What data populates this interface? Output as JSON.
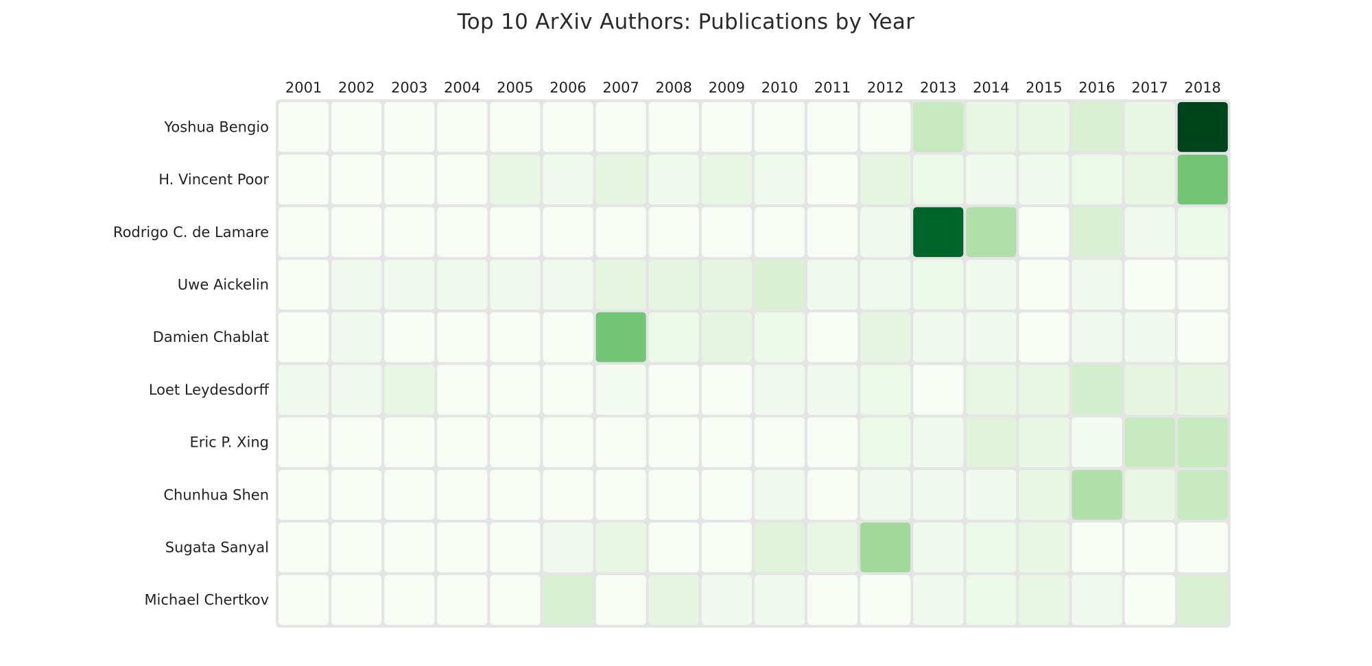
{
  "chart_data": {
    "type": "heatmap",
    "title": "Top 10 ArXiv Authors: Publications by Year",
    "x": [
      "2001",
      "2002",
      "2003",
      "2004",
      "2005",
      "2006",
      "2007",
      "2008",
      "2009",
      "2010",
      "2011",
      "2012",
      "2013",
      "2014",
      "2015",
      "2016",
      "2017",
      "2018"
    ],
    "y": [
      "Yoshua Bengio",
      "H. Vincent Poor",
      "Rodrigo C. de Lamare",
      "Uwe Aickelin",
      "Damien Chablat",
      "Loet Leydesdorff",
      "Eric P. Xing",
      "Chunhua Shen",
      "Sugata Sanyal",
      "Michael Chertkov"
    ],
    "z": [
      [
        0,
        0,
        0,
        0,
        0,
        0,
        0,
        0,
        0,
        0,
        0,
        0,
        10,
        4,
        4,
        7,
        4,
        40
      ],
      [
        0,
        0,
        0,
        0,
        4,
        2,
        5,
        2,
        4,
        2,
        0,
        5,
        3,
        2,
        2,
        3,
        4,
        20
      ],
      [
        0,
        0,
        0,
        0,
        0,
        0,
        0,
        0,
        0,
        0,
        0,
        2,
        36,
        13,
        0,
        7,
        2,
        3
      ],
      [
        0,
        2,
        2,
        2,
        2,
        2,
        5,
        5,
        5,
        7,
        2,
        2,
        3,
        2,
        0,
        2,
        0,
        0
      ],
      [
        0,
        2,
        0,
        0,
        0,
        0,
        20,
        3,
        5,
        3,
        0,
        5,
        2,
        2,
        0,
        2,
        2,
        0
      ],
      [
        2,
        2,
        4,
        0,
        0,
        0,
        1,
        0,
        0,
        2,
        2,
        3,
        0,
        4,
        4,
        8,
        5,
        5
      ],
      [
        0,
        0,
        0,
        0,
        0,
        0,
        0,
        0,
        0,
        0,
        0,
        3,
        2,
        6,
        4,
        1,
        10,
        10
      ],
      [
        0,
        0,
        0,
        0,
        0,
        0,
        0,
        0,
        0,
        2,
        0,
        2,
        2,
        2,
        4,
        13,
        4,
        10
      ],
      [
        0,
        0,
        0,
        0,
        0,
        2,
        4,
        0,
        0,
        6,
        4,
        15,
        2,
        3,
        4,
        0,
        0,
        0
      ],
      [
        0,
        0,
        0,
        0,
        0,
        7,
        0,
        5,
        2,
        2,
        0,
        0,
        2,
        3,
        4,
        2,
        0,
        7
      ]
    ],
    "colorscale": "Greens",
    "zmin": 0,
    "zmax": 40,
    "colors": {
      "low": "#f7fcf5",
      "high": "#00441b",
      "gap": "#e4e4e4"
    }
  }
}
